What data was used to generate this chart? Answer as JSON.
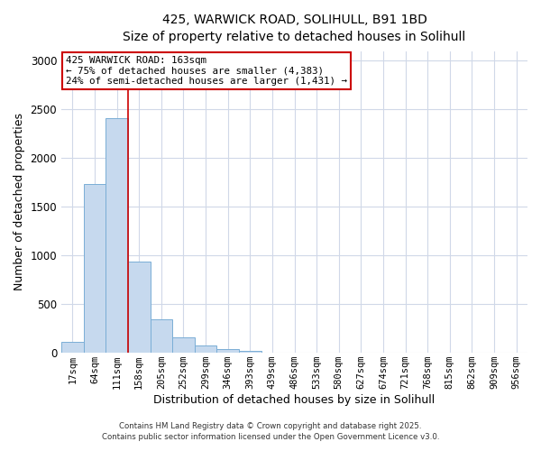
{
  "title": "425, WARWICK ROAD, SOLIHULL, B91 1BD",
  "subtitle": "Size of property relative to detached houses in Solihull",
  "xlabel": "Distribution of detached houses by size in Solihull",
  "ylabel": "Number of detached properties",
  "bar_labels": [
    "17sqm",
    "64sqm",
    "111sqm",
    "158sqm",
    "205sqm",
    "252sqm",
    "299sqm",
    "346sqm",
    "393sqm",
    "439sqm",
    "486sqm",
    "533sqm",
    "580sqm",
    "627sqm",
    "674sqm",
    "721sqm",
    "768sqm",
    "815sqm",
    "862sqm",
    "909sqm",
    "956sqm"
  ],
  "bar_values": [
    110,
    1735,
    2410,
    940,
    340,
    155,
    80,
    38,
    18,
    5,
    0,
    0,
    0,
    0,
    0,
    0,
    0,
    0,
    0,
    0,
    0
  ],
  "bar_color": "#c6d9ee",
  "bar_edge_color": "#7aaed6",
  "annotation_box_text_line1": "425 WARWICK ROAD: 163sqm",
  "annotation_box_text_line2": "← 75% of detached houses are smaller (4,383)",
  "annotation_box_text_line3": "24% of semi-detached houses are larger (1,431) →",
  "annotation_box_color": "#ffffff",
  "annotation_box_edge_color": "#cc0000",
  "property_line_x": 3,
  "ylim": [
    0,
    3100
  ],
  "yticks": [
    0,
    500,
    1000,
    1500,
    2000,
    2500,
    3000
  ],
  "footer_line1": "Contains HM Land Registry data © Crown copyright and database right 2025.",
  "footer_line2": "Contains public sector information licensed under the Open Government Licence v3.0.",
  "background_color": "#ffffff",
  "grid_color": "#d0d8e8"
}
